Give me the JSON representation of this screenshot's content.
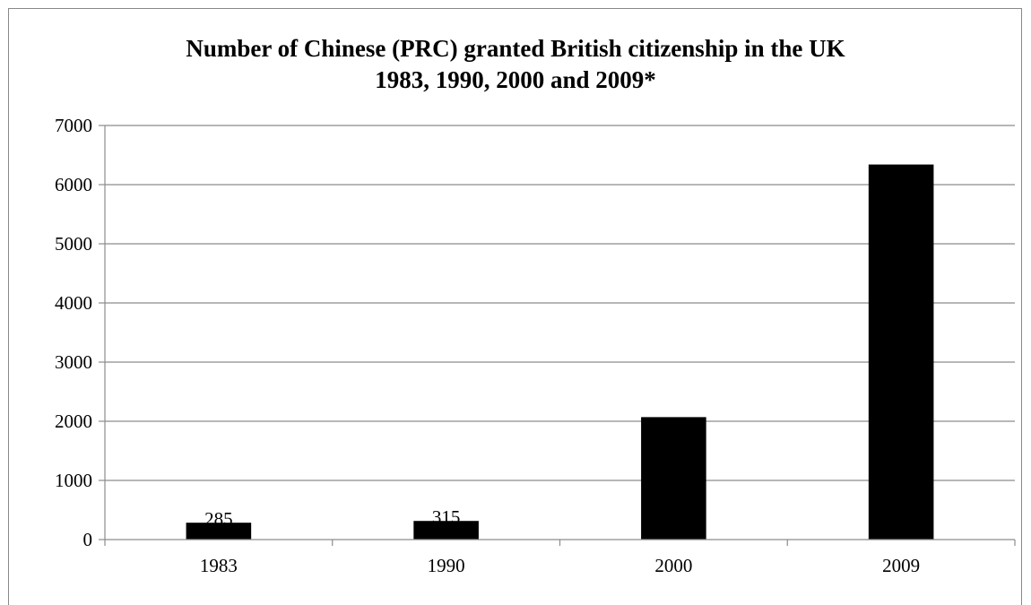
{
  "chart_data": {
    "type": "bar",
    "title_line1": "Number of Chinese (PRC) granted British citizenship in the UK",
    "title_line2": "1983, 1990, 2000 and 2009*",
    "xlabel": "",
    "ylabel": "",
    "categories": [
      "1983",
      "1990",
      "2000",
      "2009"
    ],
    "values": [
      285,
      315,
      2070,
      6340
    ],
    "data_labels": [
      "285",
      "315",
      "",
      ""
    ],
    "ylim": [
      0,
      7000
    ],
    "y_ticks": [
      0,
      1000,
      2000,
      3000,
      4000,
      5000,
      6000,
      7000
    ],
    "grid": true,
    "legend": "none",
    "bar_color": "#000000",
    "grid_color": "#8c8c8c"
  }
}
